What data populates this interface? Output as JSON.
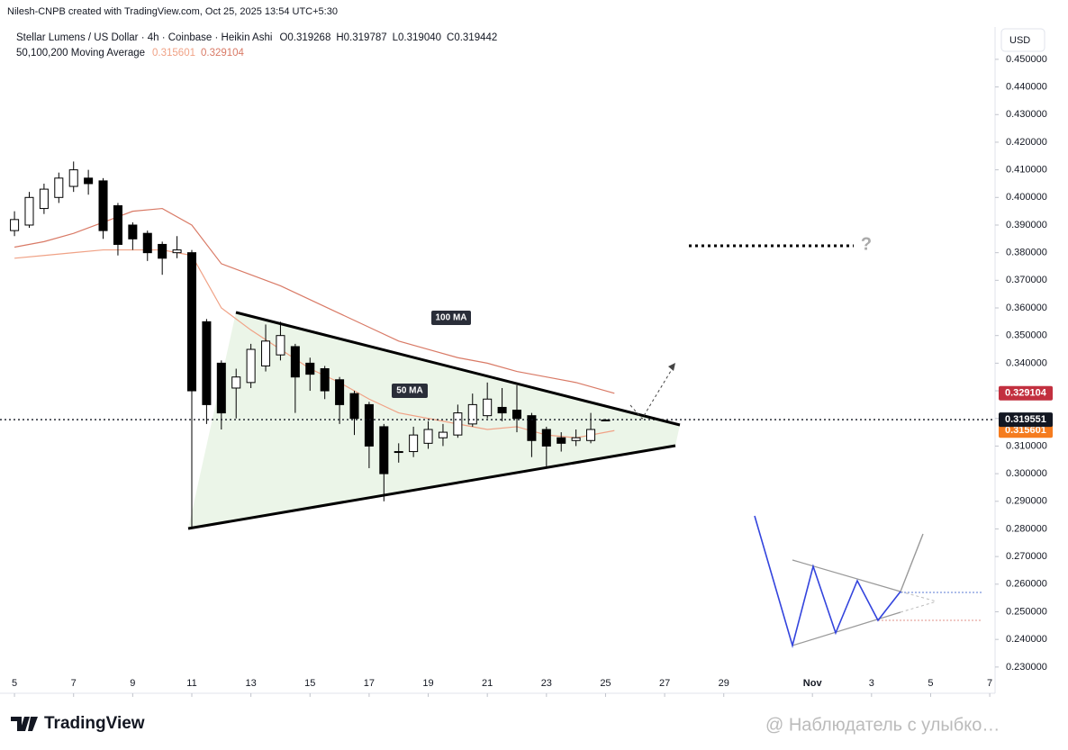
{
  "header": {
    "credit": "Nilesh-CNPB created with TradingView.com, Oct 25, 2025 13:54 UTC+5:30",
    "symbol": "Stellar Lumens / US Dollar · 4h · Coinbase · Heikin Ashi",
    "ohlc": [
      "O0.319268",
      "H0.319787",
      "L0.319040",
      "C0.319442"
    ],
    "indicator": "50,100,200 Moving Average"
  },
  "chart_data": {
    "type": "candlestick",
    "currency": "USD",
    "x": [
      5,
      5.5,
      6,
      6.5,
      7,
      7.5,
      8,
      8.5,
      9,
      9.5,
      10,
      10.5,
      11,
      11.5,
      12,
      12.5,
      13,
      13.5,
      14,
      14.5,
      15,
      15.5,
      16,
      16.5,
      17,
      17.5,
      18,
      18.5,
      19,
      19.5,
      20,
      20.5,
      21,
      21.5,
      22,
      22.5,
      23,
      23.5,
      24,
      24.5,
      25
    ],
    "open": [
      0.388,
      0.39,
      0.396,
      0.4,
      0.404,
      0.407,
      0.406,
      0.397,
      0.39,
      0.387,
      0.383,
      0.38,
      0.38,
      0.355,
      0.34,
      0.331,
      0.333,
      0.339,
      0.343,
      0.346,
      0.34,
      0.338,
      0.334,
      0.329,
      0.325,
      0.317,
      0.308,
      0.308,
      0.311,
      0.313,
      0.314,
      0.318,
      0.321,
      0.324,
      0.323,
      0.321,
      0.316,
      0.313,
      0.312,
      0.312,
      0.319268
    ],
    "high": [
      0.395,
      0.402,
      0.405,
      0.409,
      0.413,
      0.41,
      0.407,
      0.398,
      0.391,
      0.388,
      0.384,
      0.386,
      0.381,
      0.356,
      0.341,
      0.338,
      0.347,
      0.354,
      0.355,
      0.347,
      0.342,
      0.339,
      0.335,
      0.33,
      0.326,
      0.318,
      0.311,
      0.317,
      0.319,
      0.318,
      0.325,
      0.329,
      0.333,
      0.331,
      0.332,
      0.322,
      0.317,
      0.315,
      0.316,
      0.322,
      0.319787
    ],
    "low": [
      0.386,
      0.389,
      0.394,
      0.398,
      0.402,
      0.401,
      0.385,
      0.379,
      0.381,
      0.377,
      0.372,
      0.378,
      0.28,
      0.318,
      0.316,
      0.32,
      0.331,
      0.337,
      0.341,
      0.322,
      0.33,
      0.327,
      0.318,
      0.314,
      0.302,
      0.29,
      0.304,
      0.306,
      0.309,
      0.31,
      0.313,
      0.317,
      0.32,
      0.319,
      0.315,
      0.306,
      0.302,
      0.308,
      0.31,
      0.311,
      0.31904
    ],
    "close": [
      0.392,
      0.4,
      0.403,
      0.407,
      0.41,
      0.405,
      0.388,
      0.383,
      0.385,
      0.38,
      0.378,
      0.381,
      0.33,
      0.325,
      0.322,
      0.335,
      0.345,
      0.348,
      0.35,
      0.335,
      0.336,
      0.33,
      0.325,
      0.32,
      0.31,
      0.3,
      0.308,
      0.314,
      0.316,
      0.315,
      0.322,
      0.325,
      0.327,
      0.322,
      0.32,
      0.312,
      0.31,
      0.311,
      0.313,
      0.316,
      0.319442
    ],
    "up_color": "#ffffff",
    "down_color": "#000000",
    "series": [
      {
        "name": "50 MA",
        "color": "#f0a286",
        "x": [
          5,
          6,
          7,
          8,
          9,
          10,
          11,
          12,
          13,
          14,
          15,
          16,
          17,
          18,
          19,
          20,
          21,
          22,
          23,
          24,
          25.3
        ],
        "values": [
          0.378,
          0.379,
          0.38,
          0.381,
          0.381,
          0.381,
          0.379,
          0.36,
          0.352,
          0.345,
          0.338,
          0.333,
          0.327,
          0.322,
          0.32,
          0.318,
          0.316,
          0.317,
          0.314,
          0.313,
          0.315601
        ]
      },
      {
        "name": "100 MA",
        "color": "#d97a66",
        "x": [
          5,
          6,
          7,
          8,
          9,
          10,
          11,
          12,
          13,
          14,
          15,
          16,
          17,
          18,
          19,
          20,
          21,
          22,
          23,
          24,
          25.3
        ],
        "values": [
          0.382,
          0.384,
          0.387,
          0.391,
          0.395,
          0.396,
          0.39,
          0.376,
          0.372,
          0.368,
          0.363,
          0.358,
          0.353,
          0.348,
          0.345,
          0.342,
          0.34,
          0.337,
          0.335,
          0.333,
          0.329104
        ]
      }
    ],
    "last_price": 0.319551,
    "annotation": "?",
    "xlim": [
      4.51,
      38.18
    ],
    "ylim": [
      0.2205,
      0.4617
    ],
    "xticks": [
      5,
      7,
      9,
      11,
      13,
      15,
      17,
      19,
      21,
      23,
      25,
      27,
      29,
      {
        "value": 32,
        "label": "Nov"
      },
      {
        "value": 34,
        "label": "3"
      },
      {
        "value": 36,
        "label": "5"
      },
      {
        "value": 38,
        "label": "7"
      }
    ],
    "yticks": [
      {
        "value": 0.23,
        "label": "0.230000"
      },
      {
        "value": 0.24,
        "label": "0.240000"
      },
      {
        "value": 0.25,
        "label": "0.250000"
      },
      {
        "value": 0.26,
        "label": "0.260000"
      },
      {
        "value": 0.27,
        "label": "0.270000"
      },
      {
        "value": 0.28,
        "label": "0.280000"
      },
      {
        "value": 0.29,
        "label": "0.290000"
      },
      {
        "value": 0.3,
        "label": "0.300000"
      },
      {
        "value": 0.31,
        "label": "0.310000"
      },
      {
        "value": 0.32,
        "label": "0.320000"
      },
      {
        "value": 0.33,
        "label": "0.330000"
      },
      {
        "value": 0.34,
        "label": "0.340000"
      },
      {
        "value": 0.35,
        "label": "0.350000"
      },
      {
        "value": 0.36,
        "label": "0.360000"
      },
      {
        "value": 0.37,
        "label": "0.370000"
      },
      {
        "value": 0.38,
        "label": "0.380000"
      },
      {
        "value": 0.39,
        "label": "0.390000"
      },
      {
        "value": 0.4,
        "label": "0.400000"
      },
      {
        "value": 0.41,
        "label": "0.410000"
      },
      {
        "value": 0.42,
        "label": "0.420000"
      },
      {
        "value": 0.43,
        "label": "0.430000"
      },
      {
        "value": 0.44,
        "label": "0.440000"
      },
      {
        "value": 0.45,
        "label": "0.450000"
      }
    ]
  },
  "footer": {
    "logo": "TradingView",
    "watermark": "@ Наблюдатель с улыбко…"
  }
}
